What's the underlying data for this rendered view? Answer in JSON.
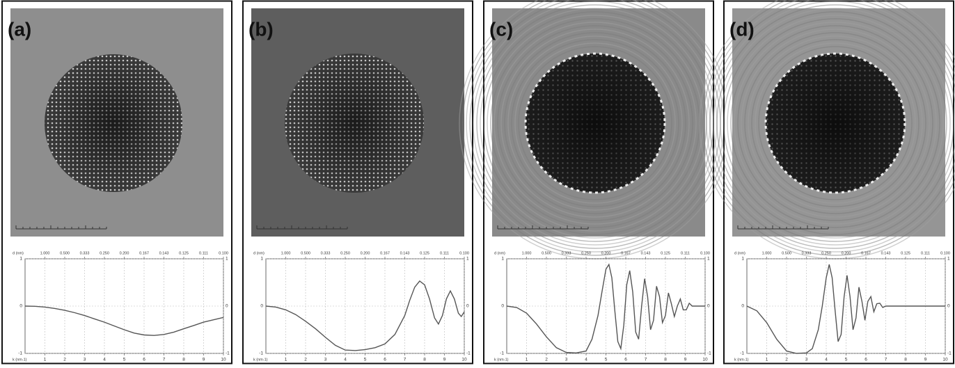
{
  "chart_data": [
    {
      "type": "line",
      "title": "(a)",
      "x2label": "d (nm)",
      "xlabel": "k (nm-1)",
      "color": "#555555",
      "grid": true,
      "xlim": [
        0,
        10
      ],
      "ylim": [
        -1,
        1
      ],
      "xticks": [
        1,
        2,
        3,
        4,
        5,
        6,
        7,
        8,
        9,
        10
      ],
      "yticks": [
        -1,
        0,
        1
      ],
      "x2ticks": [
        {
          "value": 1,
          "label": "1.000"
        },
        {
          "value": 2,
          "label": "0.500"
        },
        {
          "value": 3,
          "label": "0.333"
        },
        {
          "value": 4,
          "label": "0.250"
        },
        {
          "value": 5,
          "label": "0.200"
        },
        {
          "value": 6,
          "label": "0.167"
        },
        {
          "value": 7,
          "label": "0.143"
        },
        {
          "value": 8,
          "label": "0.125"
        },
        {
          "value": 9,
          "label": "0.111"
        },
        {
          "value": 10,
          "label": "0.100"
        }
      ],
      "x": [
        0,
        0.5,
        1,
        1.5,
        2,
        2.5,
        3,
        3.5,
        4,
        4.5,
        5,
        5.5,
        6,
        6.5,
        7,
        7.5,
        8,
        8.5,
        9,
        9.5,
        10
      ],
      "values": [
        0,
        -0.005,
        -0.02,
        -0.05,
        -0.09,
        -0.14,
        -0.2,
        -0.27,
        -0.34,
        -0.42,
        -0.5,
        -0.57,
        -0.61,
        -0.62,
        -0.6,
        -0.55,
        -0.48,
        -0.41,
        -0.34,
        -0.29,
        -0.24
      ]
    },
    {
      "type": "line",
      "title": "(b)",
      "x2label": "d (nm)",
      "xlabel": "k (nm-1)",
      "color": "#555555",
      "grid": true,
      "xlim": [
        0,
        10
      ],
      "ylim": [
        -1,
        1
      ],
      "xticks": [
        1,
        2,
        3,
        4,
        5,
        6,
        7,
        8,
        9,
        10
      ],
      "yticks": [
        -1,
        0,
        1
      ],
      "x2ticks": [
        {
          "value": 1,
          "label": "1.000"
        },
        {
          "value": 2,
          "label": "0.500"
        },
        {
          "value": 3,
          "label": "0.333"
        },
        {
          "value": 4,
          "label": "0.250"
        },
        {
          "value": 5,
          "label": "0.200"
        },
        {
          "value": 6,
          "label": "0.167"
        },
        {
          "value": 7,
          "label": "0.143"
        },
        {
          "value": 8,
          "label": "0.125"
        },
        {
          "value": 9,
          "label": "0.111"
        },
        {
          "value": 10,
          "label": "0.100"
        }
      ],
      "x": [
        0,
        0.5,
        1,
        1.5,
        2,
        2.5,
        3,
        3.5,
        4,
        4.5,
        5,
        5.5,
        6,
        6.5,
        7,
        7.25,
        7.5,
        7.75,
        8,
        8.25,
        8.5,
        8.7,
        8.9,
        9.1,
        9.3,
        9.5,
        9.7,
        9.85,
        10
      ],
      "values": [
        0,
        -0.02,
        -0.08,
        -0.18,
        -0.32,
        -0.48,
        -0.66,
        -0.83,
        -0.93,
        -0.94,
        -0.92,
        -0.88,
        -0.8,
        -0.6,
        -0.2,
        0.12,
        0.4,
        0.53,
        0.45,
        0.15,
        -0.25,
        -0.38,
        -0.2,
        0.15,
        0.32,
        0.15,
        -0.15,
        -0.22,
        -0.12
      ]
    },
    {
      "type": "line",
      "title": "(c)",
      "x2label": "d (nm)",
      "xlabel": "k (nm-1)",
      "color": "#555555",
      "grid": true,
      "xlim": [
        0,
        10
      ],
      "ylim": [
        -1,
        1
      ],
      "xticks": [
        1,
        2,
        3,
        4,
        5,
        6,
        7,
        8,
        9,
        10
      ],
      "yticks": [
        -1,
        0,
        1
      ],
      "x2ticks": [
        {
          "value": 1,
          "label": "1.000"
        },
        {
          "value": 2,
          "label": "0.500"
        },
        {
          "value": 3,
          "label": "0.333"
        },
        {
          "value": 4,
          "label": "0.250"
        },
        {
          "value": 5,
          "label": "0.200"
        },
        {
          "value": 6,
          "label": "0.167"
        },
        {
          "value": 7,
          "label": "0.143"
        },
        {
          "value": 8,
          "label": "0.125"
        },
        {
          "value": 9,
          "label": "0.111"
        },
        {
          "value": 10,
          "label": "0.100"
        }
      ],
      "x": [
        0,
        0.5,
        1,
        1.5,
        2,
        2.5,
        3,
        3.5,
        4,
        4.3,
        4.6,
        4.8,
        5,
        5.15,
        5.3,
        5.45,
        5.6,
        5.75,
        5.9,
        6.05,
        6.2,
        6.35,
        6.5,
        6.65,
        6.8,
        6.95,
        7.1,
        7.25,
        7.4,
        7.55,
        7.7,
        7.85,
        8,
        8.15,
        8.3,
        8.45,
        8.6,
        8.75,
        8.9,
        9.05,
        9.2,
        9.35,
        9.5,
        10
      ],
      "values": [
        0,
        -0.03,
        -0.15,
        -0.38,
        -0.65,
        -0.88,
        -0.98,
        -0.99,
        -0.95,
        -0.7,
        -0.2,
        0.3,
        0.78,
        0.88,
        0.6,
        -0.1,
        -0.75,
        -0.9,
        -0.4,
        0.45,
        0.75,
        0.3,
        -0.55,
        -0.7,
        0,
        0.58,
        0.2,
        -0.5,
        -0.3,
        0.42,
        0.2,
        -0.35,
        -0.2,
        0.28,
        0.05,
        -0.22,
        0,
        0.15,
        -0.08,
        -0.08,
        0.06,
        0,
        0,
        0
      ]
    },
    {
      "type": "line",
      "title": "(d)",
      "x2label": "d (nm)",
      "xlabel": "k (nm-1)",
      "color": "#555555",
      "grid": true,
      "xlim": [
        0,
        10
      ],
      "ylim": [
        -1,
        1
      ],
      "xticks": [
        1,
        2,
        3,
        4,
        5,
        6,
        7,
        8,
        9,
        10
      ],
      "yticks": [
        -1,
        0,
        1
      ],
      "x2ticks": [
        {
          "value": 1,
          "label": "1.000"
        },
        {
          "value": 2,
          "label": "0.500"
        },
        {
          "value": 3,
          "label": "0.333"
        },
        {
          "value": 4,
          "label": "0.250"
        },
        {
          "value": 5,
          "label": "0.200"
        },
        {
          "value": 6,
          "label": "0.167"
        },
        {
          "value": 7,
          "label": "0.143"
        },
        {
          "value": 8,
          "label": "0.125"
        },
        {
          "value": 9,
          "label": "0.111"
        },
        {
          "value": 10,
          "label": "0.100"
        }
      ],
      "x": [
        0,
        0.5,
        1,
        1.5,
        2,
        2.5,
        3,
        3.3,
        3.6,
        3.8,
        4,
        4.15,
        4.3,
        4.45,
        4.6,
        4.75,
        4.9,
        5.05,
        5.2,
        5.35,
        5.5,
        5.65,
        5.8,
        5.95,
        6.1,
        6.25,
        6.4,
        6.55,
        6.7,
        6.85,
        7,
        10
      ],
      "values": [
        0,
        -0.1,
        -0.35,
        -0.7,
        -0.95,
        -1,
        -0.99,
        -0.9,
        -0.5,
        0,
        0.6,
        0.88,
        0.6,
        -0.1,
        -0.75,
        -0.6,
        0.2,
        0.65,
        0.2,
        -0.5,
        -0.25,
        0.4,
        0.1,
        -0.3,
        0.1,
        0.2,
        -0.12,
        0.05,
        0.06,
        -0.03,
        0,
        0
      ]
    }
  ]
}
